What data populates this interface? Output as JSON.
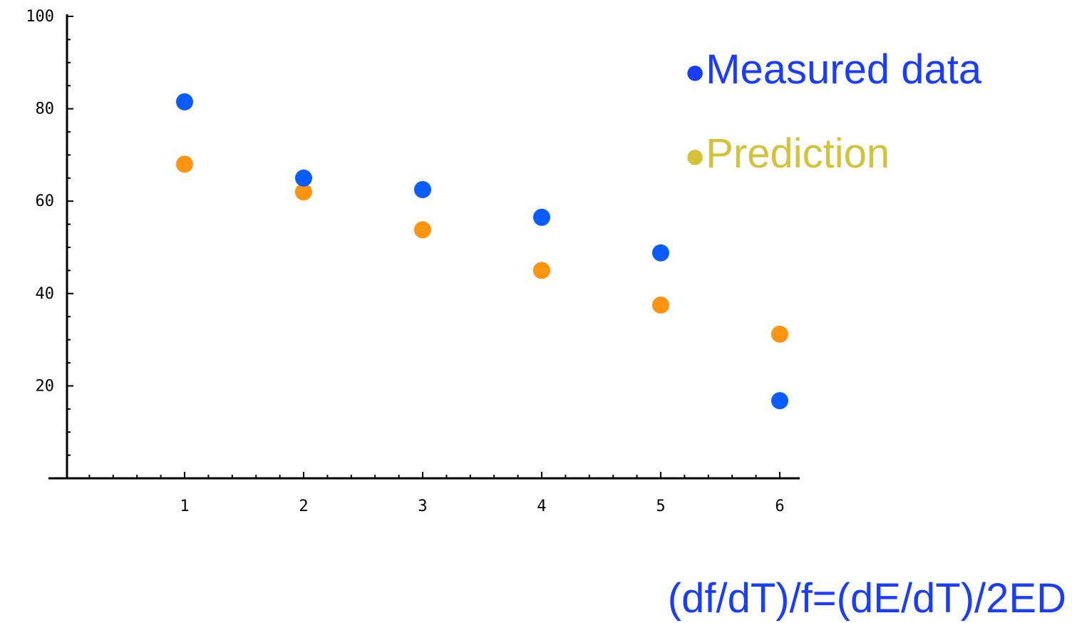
{
  "chart_data": {
    "type": "scatter",
    "title": "",
    "xlabel": "",
    "ylabel": "",
    "x": [
      1,
      2,
      3,
      4,
      5,
      6
    ],
    "xlim": [
      0,
      6.15
    ],
    "ylim": [
      0,
      100
    ],
    "x_ticks": [
      1,
      2,
      3,
      4,
      5,
      6
    ],
    "y_ticks": [
      20,
      40,
      60,
      80,
      100
    ],
    "grid": false,
    "legend_position": "top-right",
    "series": [
      {
        "name": "Measured data",
        "color": "#0a5cff",
        "values": [
          81.5,
          65,
          62.5,
          56.5,
          48.8,
          16.8
        ]
      },
      {
        "name": "Prediction",
        "color": "#ff9410",
        "legend_color": "#d4c23a",
        "values": [
          68,
          62,
          53.8,
          45,
          37.5,
          31.2
        ]
      }
    ]
  },
  "legend": {
    "bullet": "●",
    "items": [
      {
        "label": "Measured data",
        "color": "#1a3cff"
      },
      {
        "label": "Prediction",
        "color": "#d4c23a"
      }
    ]
  },
  "annotation": {
    "text": "(df/dT)/f=(dE/dT)/2ED",
    "color": "#1a3cff"
  }
}
